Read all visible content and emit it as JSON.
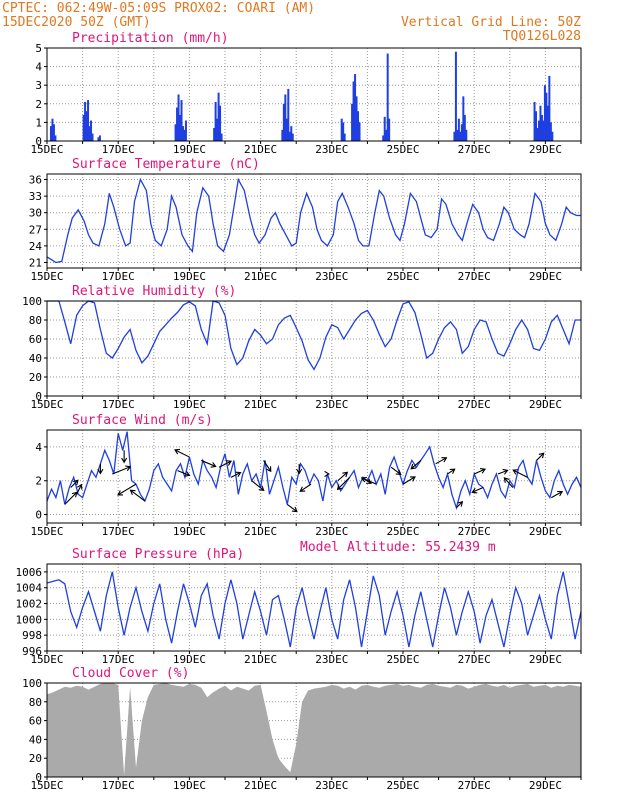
{
  "header": {
    "line1": "CPTEC:  062:49W-05:09S  PROX02: COARI (AM)",
    "line2_left": "15DEC2020 50Z (GMT)",
    "line2_right": "Vertical Grid Line: 50Z",
    "line3_right": "TQ0126L028",
    "text_color": "#e07820"
  },
  "colors": {
    "title": "#e0147a",
    "line": "#1f3fe0",
    "bar": "#1f3fe0",
    "cloud": "#aaaaaa",
    "grid": "#9a9a9a"
  },
  "chart_data": [
    {
      "type": "bar",
      "title": "Precipitation (mm/h)",
      "ylim": [
        0,
        5
      ],
      "yticks": [
        0,
        1,
        2,
        3,
        4,
        5
      ],
      "xlabels": [
        "15DEC",
        "17DEC",
        "19DEC",
        "21DEC",
        "23DEC",
        "25DEC",
        "27DEC",
        "29DEC"
      ],
      "x_hours_range": [
        0,
        360
      ],
      "events": [
        {
          "x": 2,
          "values": [
            0.8,
            1.2,
            0.9,
            0.3
          ]
        },
        {
          "x": 24,
          "values": [
            1.4,
            2.1,
            1.6,
            2.2,
            0.8,
            1.1,
            0.4
          ]
        },
        {
          "x": 34,
          "values": [
            0.2,
            0.3
          ]
        },
        {
          "x": 86,
          "values": [
            0.9,
            1.8,
            2.5,
            1.4,
            2.2,
            0.8,
            0.6,
            1.1
          ]
        },
        {
          "x": 112,
          "values": [
            0.7,
            2.1,
            1.2,
            2.6,
            1.9,
            0.4
          ]
        },
        {
          "x": 158,
          "values": [
            0.6,
            2.0,
            2.5,
            1.2,
            2.8,
            0.5,
            0.8,
            0.4
          ]
        },
        {
          "x": 198,
          "values": [
            1.2,
            1.0,
            0.4
          ]
        },
        {
          "x": 205,
          "values": [
            2.0,
            3.2,
            3.6,
            2.4,
            1.6,
            1.0
          ]
        },
        {
          "x": 226,
          "values": [
            0.3,
            1.3,
            0.6,
            4.7,
            1.2
          ]
        },
        {
          "x": 274,
          "values": [
            0.5,
            4.8,
            0.6,
            1.2,
            0.5,
            0.9,
            2.4,
            1.4,
            0.6
          ]
        },
        {
          "x": 328,
          "values": [
            2.1,
            1.6,
            0.7,
            1.1,
            1.9,
            1.4,
            1.1,
            3.0,
            2.6,
            1.9,
            3.5,
            1.0,
            0.5
          ]
        }
      ]
    },
    {
      "type": "line",
      "title": "Surface Temperature (nC)",
      "ylim": [
        20,
        37
      ],
      "yticks": [
        21,
        24,
        27,
        30,
        33,
        36
      ],
      "xlabels": [
        "15DEC",
        "17DEC",
        "19DEC",
        "21DEC",
        "23DEC",
        "25DEC",
        "27DEC",
        "29DEC"
      ],
      "x": [
        0,
        3,
        6,
        10,
        14,
        17,
        21,
        25,
        28,
        31,
        35,
        39,
        42,
        45,
        49,
        53,
        56,
        59,
        63,
        67,
        70,
        73,
        77,
        81,
        84,
        87,
        91,
        95,
        98,
        101,
        105,
        109,
        112,
        115,
        119,
        123,
        126,
        129,
        133,
        137,
        140,
        143,
        147,
        151,
        154,
        157,
        161,
        165,
        168,
        171,
        175,
        179,
        182,
        185,
        189,
        193,
        196,
        199,
        203,
        207,
        210,
        213,
        217,
        221,
        224,
        227,
        231,
        235,
        238,
        241,
        245,
        249,
        252,
        255,
        259,
        263,
        266,
        269,
        273,
        277,
        280,
        283,
        287,
        291,
        294,
        297,
        301,
        305,
        308,
        311,
        315,
        319,
        322,
        325,
        329,
        333,
        336,
        339,
        343,
        347,
        350,
        353,
        357,
        360
      ],
      "values": [
        22,
        21.5,
        21,
        21.2,
        26,
        29,
        30.5,
        28.5,
        26,
        24.5,
        24,
        28,
        33.5,
        31,
        27,
        24,
        24.5,
        32,
        36,
        34,
        28,
        25,
        24,
        27,
        33,
        31,
        26,
        24,
        23,
        30,
        34.5,
        33,
        28,
        24,
        23,
        26,
        31,
        36,
        34,
        29,
        26,
        24.5,
        26,
        29,
        30,
        28,
        26,
        24,
        24.5,
        30,
        33.5,
        31,
        27,
        25,
        24,
        26,
        32,
        33.5,
        31,
        28,
        25,
        24,
        24,
        30,
        34,
        33,
        29,
        26,
        25,
        28,
        33.5,
        32,
        29,
        26,
        25.5,
        27,
        32.5,
        31.5,
        28,
        26,
        25,
        28,
        31.5,
        30,
        27,
        25.5,
        25,
        28,
        31,
        30,
        27,
        26,
        25.5,
        28,
        33.5,
        32,
        28,
        26,
        25,
        28,
        31,
        30,
        29.5,
        29.5
      ]
    },
    {
      "type": "line",
      "title": "Relative Humidity (%)",
      "ylim": [
        0,
        100
      ],
      "yticks": [
        0,
        20,
        40,
        60,
        80,
        100
      ],
      "xlabels": [
        "15DEC",
        "17DEC",
        "19DEC",
        "21DEC",
        "23DEC",
        "25DEC",
        "27DEC",
        "29DEC"
      ],
      "x": [
        0,
        4,
        8,
        12,
        16,
        20,
        24,
        28,
        32,
        36,
        40,
        44,
        48,
        52,
        56,
        60,
        64,
        68,
        72,
        76,
        80,
        84,
        88,
        92,
        96,
        100,
        104,
        108,
        112,
        116,
        120,
        124,
        128,
        132,
        136,
        140,
        144,
        148,
        152,
        156,
        160,
        164,
        168,
        172,
        176,
        180,
        184,
        188,
        192,
        196,
        200,
        204,
        208,
        212,
        216,
        220,
        224,
        228,
        232,
        236,
        240,
        244,
        248,
        252,
        256,
        260,
        264,
        268,
        272,
        276,
        280,
        284,
        288,
        292,
        296,
        300,
        304,
        308,
        312,
        316,
        320,
        324,
        328,
        332,
        336,
        340,
        344,
        348,
        352,
        356,
        360
      ],
      "values": [
        100,
        100,
        100,
        78,
        55,
        85,
        95,
        100,
        98,
        70,
        45,
        40,
        50,
        62,
        70,
        48,
        35,
        42,
        55,
        68,
        75,
        82,
        88,
        96,
        99,
        95,
        70,
        55,
        100,
        98,
        85,
        50,
        33,
        40,
        58,
        70,
        64,
        55,
        60,
        75,
        82,
        85,
        72,
        58,
        38,
        28,
        40,
        62,
        75,
        72,
        60,
        70,
        80,
        87,
        90,
        80,
        65,
        52,
        60,
        80,
        97,
        99,
        88,
        65,
        40,
        45,
        60,
        72,
        78,
        70,
        45,
        52,
        70,
        80,
        78,
        60,
        45,
        42,
        55,
        70,
        80,
        70,
        50,
        48,
        60,
        78,
        85,
        70,
        55,
        80,
        80
      ]
    },
    {
      "type": "line",
      "title": "Surface Wind (m/s)",
      "ylim": [
        -0.5,
        5
      ],
      "yticks": [
        0,
        2,
        4
      ],
      "xlabels": [
        "15DEC",
        "17DEC",
        "19DEC",
        "21DEC",
        "23DEC",
        "25DEC",
        "27DEC",
        "29DEC"
      ],
      "x": [
        0,
        3,
        6,
        9,
        12,
        15,
        18,
        21,
        24,
        27,
        30,
        33,
        36,
        39,
        42,
        45,
        48,
        51,
        54,
        57,
        60,
        63,
        66,
        69,
        72,
        75,
        78,
        81,
        84,
        87,
        90,
        93,
        96,
        99,
        102,
        105,
        108,
        111,
        114,
        117,
        120,
        123,
        126,
        129,
        132,
        135,
        138,
        141,
        144,
        147,
        150,
        153,
        156,
        159,
        162,
        165,
        168,
        171,
        174,
        177,
        180,
        183,
        186,
        189,
        192,
        195,
        198,
        201,
        204,
        207,
        210,
        213,
        216,
        219,
        222,
        225,
        228,
        231,
        234,
        237,
        240,
        243,
        246,
        249,
        252,
        255,
        258,
        261,
        264,
        267,
        270,
        273,
        276,
        279,
        282,
        285,
        288,
        291,
        294,
        297,
        300,
        303,
        306,
        309,
        312,
        315,
        318,
        321,
        324,
        327,
        330,
        333,
        336,
        339,
        342,
        345,
        348,
        351,
        354,
        357,
        360
      ],
      "values": [
        0.8,
        1.5,
        1.0,
        2.0,
        0.6,
        1.6,
        2.2,
        1.2,
        1.0,
        1.8,
        2.6,
        2.2,
        3.0,
        3.8,
        3.2,
        2.4,
        4.8,
        3.8,
        4.9,
        2.0,
        1.8,
        1.2,
        0.8,
        1.5,
        2.6,
        3.0,
        2.2,
        1.8,
        1.4,
        2.6,
        3.0,
        2.2,
        3.4,
        2.4,
        1.8,
        3.2,
        2.6,
        2.2,
        1.6,
        2.8,
        3.6,
        2.2,
        3.2,
        1.2,
        2.4,
        3.0,
        2.0,
        2.4,
        1.6,
        3.2,
        1.2,
        2.0,
        2.8,
        1.6,
        0.6,
        2.2,
        1.8,
        3.0,
        2.6,
        1.8,
        2.4,
        2.0,
        0.8,
        2.4,
        1.6,
        2.0,
        1.4,
        1.8,
        2.2,
        2.6,
        1.6,
        2.2,
        2.0,
        2.6,
        1.8,
        2.4,
        1.2,
        2.8,
        3.4,
        2.6,
        1.8,
        2.6,
        3.2,
        2.8,
        3.2,
        3.6,
        4.0,
        3.0,
        2.2,
        1.6,
        2.4,
        1.2,
        0.4,
        1.4,
        2.0,
        1.2,
        2.4,
        1.8,
        1.6,
        1.0,
        1.8,
        2.4,
        1.4,
        1.0,
        2.0,
        1.6,
        2.8,
        3.2,
        2.2,
        1.8,
        3.2,
        2.2,
        1.4,
        1.0,
        2.0,
        2.6,
        1.8,
        1.2,
        1.8,
        2.2,
        1.6
      ]
    },
    {
      "type": "line",
      "title": "Surface Pressure (hPa)",
      "annotation": "Model Altitude: 55.2439  m",
      "ylim": [
        996,
        1007
      ],
      "yticks": [
        996,
        998,
        1000,
        1002,
        1004,
        1006
      ],
      "xlabels": [
        "15DEC",
        "17DEC",
        "19DEC",
        "21DEC",
        "23DEC",
        "25DEC",
        "27DEC",
        "29DEC"
      ],
      "x": [
        0,
        4,
        8,
        12,
        16,
        20,
        24,
        28,
        32,
        36,
        40,
        44,
        48,
        52,
        56,
        60,
        64,
        68,
        72,
        76,
        80,
        84,
        88,
        92,
        96,
        100,
        104,
        108,
        112,
        116,
        120,
        124,
        128,
        132,
        136,
        140,
        144,
        148,
        152,
        156,
        160,
        164,
        168,
        172,
        176,
        180,
        184,
        188,
        192,
        196,
        200,
        204,
        208,
        212,
        216,
        220,
        224,
        228,
        232,
        236,
        240,
        244,
        248,
        252,
        256,
        260,
        264,
        268,
        272,
        276,
        280,
        284,
        288,
        292,
        296,
        300,
        304,
        308,
        312,
        316,
        320,
        324,
        328,
        332,
        336,
        340,
        344,
        348,
        352,
        356,
        360
      ],
      "values": [
        1004.6,
        1004.8,
        1005.0,
        1004.5,
        1001.0,
        999.0,
        1001.5,
        1003.5,
        1001.0,
        998.5,
        1003.0,
        1006.0,
        1001.5,
        998.0,
        1001.5,
        1004.0,
        1001.0,
        998.5,
        1002.0,
        1004.5,
        1000.0,
        997.0,
        1001.0,
        1004.5,
        1002.0,
        999.0,
        1003.0,
        1004.5,
        1000.5,
        997.5,
        1002.0,
        1005.0,
        1002.0,
        997.5,
        1000.5,
        1003.5,
        1001.0,
        998.0,
        1002.5,
        1003.0,
        1000.0,
        996.5,
        1001.5,
        1004.0,
        1000.5,
        997.5,
        1001.0,
        1004.0,
        1000.0,
        997.5,
        1002.5,
        1005.0,
        1001.5,
        996.5,
        1001.0,
        1005.5,
        1003.0,
        998.0,
        1001.0,
        1003.5,
        1000.5,
        996.5,
        1000.5,
        1003.5,
        1000.0,
        996.5,
        1000.5,
        1004.0,
        1001.5,
        998.0,
        1001.0,
        1003.5,
        1001.0,
        997.0,
        1000.5,
        1002.5,
        999.5,
        996.5,
        1000.5,
        1004.0,
        1002.0,
        998.0,
        1000.5,
        1003.0,
        1000.0,
        997.5,
        1003.0,
        1006.0,
        1002.0,
        997.5,
        1001.0
      ]
    },
    {
      "type": "area",
      "title": "Cloud Cover (%)",
      "ylim": [
        0,
        100
      ],
      "yticks": [
        0,
        20,
        40,
        60,
        80,
        100
      ],
      "xlabels": [
        "15DEC",
        "17DEC",
        "19DEC",
        "21DEC",
        "23DEC",
        "25DEC",
        "27DEC",
        "29DEC"
      ],
      "x": [
        0,
        4,
        8,
        12,
        16,
        20,
        24,
        28,
        32,
        36,
        40,
        44,
        48,
        52,
        56,
        60,
        64,
        68,
        72,
        76,
        80,
        84,
        88,
        92,
        96,
        100,
        104,
        108,
        112,
        116,
        120,
        124,
        128,
        132,
        136,
        140,
        144,
        148,
        152,
        156,
        160,
        164,
        168,
        172,
        176,
        180,
        184,
        188,
        192,
        196,
        200,
        204,
        208,
        212,
        216,
        220,
        224,
        228,
        232,
        236,
        240,
        244,
        248,
        252,
        256,
        260,
        264,
        268,
        272,
        276,
        280,
        284,
        288,
        292,
        296,
        300,
        304,
        308,
        312,
        316,
        320,
        324,
        328,
        332,
        336,
        340,
        344,
        348,
        352,
        356,
        360
      ],
      "values": [
        88,
        90,
        93,
        96,
        95,
        97,
        96,
        93,
        96,
        99,
        100,
        100,
        98,
        2,
        96,
        10,
        60,
        85,
        98,
        99,
        100,
        98,
        97,
        96,
        99,
        98,
        95,
        85,
        90,
        94,
        97,
        92,
        96,
        94,
        92,
        97,
        98,
        70,
        40,
        20,
        12,
        5,
        35,
        80,
        92,
        94,
        95,
        96,
        98,
        97,
        94,
        96,
        93,
        97,
        98,
        96,
        95,
        97,
        98,
        99,
        97,
        98,
        96,
        95,
        98,
        99,
        97,
        96,
        95,
        98,
        97,
        94,
        96,
        98,
        99,
        97,
        96,
        98,
        95,
        97,
        98,
        99,
        96,
        97,
        98,
        95,
        97,
        96,
        98,
        97,
        96
      ]
    }
  ],
  "wind_arrows": {
    "x": [
      12,
      16,
      20,
      36,
      44,
      52,
      60,
      66,
      88,
      96,
      104,
      116,
      124,
      138,
      146,
      162,
      170,
      178,
      190,
      196,
      204,
      212,
      222,
      232,
      240,
      252,
      262,
      270,
      276,
      288,
      294,
      304,
      314,
      324,
      330,
      340
    ],
    "u": [
      1.0,
      0.6,
      0.4,
      0.0,
      1.5,
      0.0,
      -1.5,
      -1.2,
      1.0,
      -1.2,
      1.2,
      1.0,
      0.8,
      1.0,
      0.6,
      0.8,
      0.0,
      -0.9,
      0.0,
      0.8,
      -1.0,
      0.8,
      -1.2,
      0.8,
      1.0,
      -0.8,
      0.9,
      0.6,
      0.5,
      0.9,
      -0.9,
      0.8,
      -0.7,
      -1.2,
      0.6,
      0.9
    ],
    "v": [
      1.0,
      0.6,
      0.8,
      -0.8,
      0.6,
      -1.0,
      -0.9,
      0.9,
      -0.4,
      0.6,
      -0.5,
      0.5,
      0.4,
      -0.8,
      -0.9,
      -0.6,
      -0.8,
      -0.6,
      0.0,
      0.7,
      -1.0,
      -0.5,
      0.5,
      -0.6,
      0.6,
      -0.7,
      0.5,
      0.4,
      0.5,
      0.4,
      -0.4,
      0.3,
      0.8,
      0.6,
      0.6,
      0.5
    ]
  }
}
